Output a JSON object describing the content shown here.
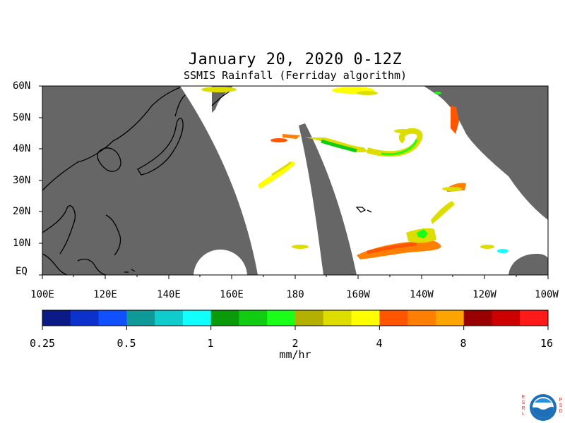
{
  "header": {
    "title": "January 20, 2020 0-12Z",
    "subtitle": "SSMIS Rainfall (Ferriday algorithm)"
  },
  "axes": {
    "lat_labels": [
      "60N",
      "50N",
      "40N",
      "30N",
      "20N",
      "10N",
      "EQ"
    ],
    "lon_labels": [
      "100E",
      "120E",
      "140E",
      "160E",
      "180",
      "160W",
      "140W",
      "120W",
      "100W"
    ]
  },
  "colorbar": {
    "tick_labels": [
      "0.25",
      "0.5",
      "1",
      "2",
      "4",
      "8",
      "16"
    ],
    "units": "mm/hr",
    "colors": [
      "#0a1a86",
      "#0b33cc",
      "#1050ff",
      "#0f9999",
      "#11cccc",
      "#11ffff",
      "#0a9a0a",
      "#12cc12",
      "#19ff19",
      "#b3b000",
      "#dddd00",
      "#ffff00",
      "#ff5500",
      "#ff7f00",
      "#ffa500",
      "#990000",
      "#cc0000",
      "#ff1a1a"
    ]
  },
  "logo": {
    "left_letters": "ESRL",
    "right_letters": "PSD",
    "center_text": "NOAA"
  },
  "colors": {
    "no_data": "#666666",
    "land_outline": "#000000",
    "background": "#ffffff"
  }
}
